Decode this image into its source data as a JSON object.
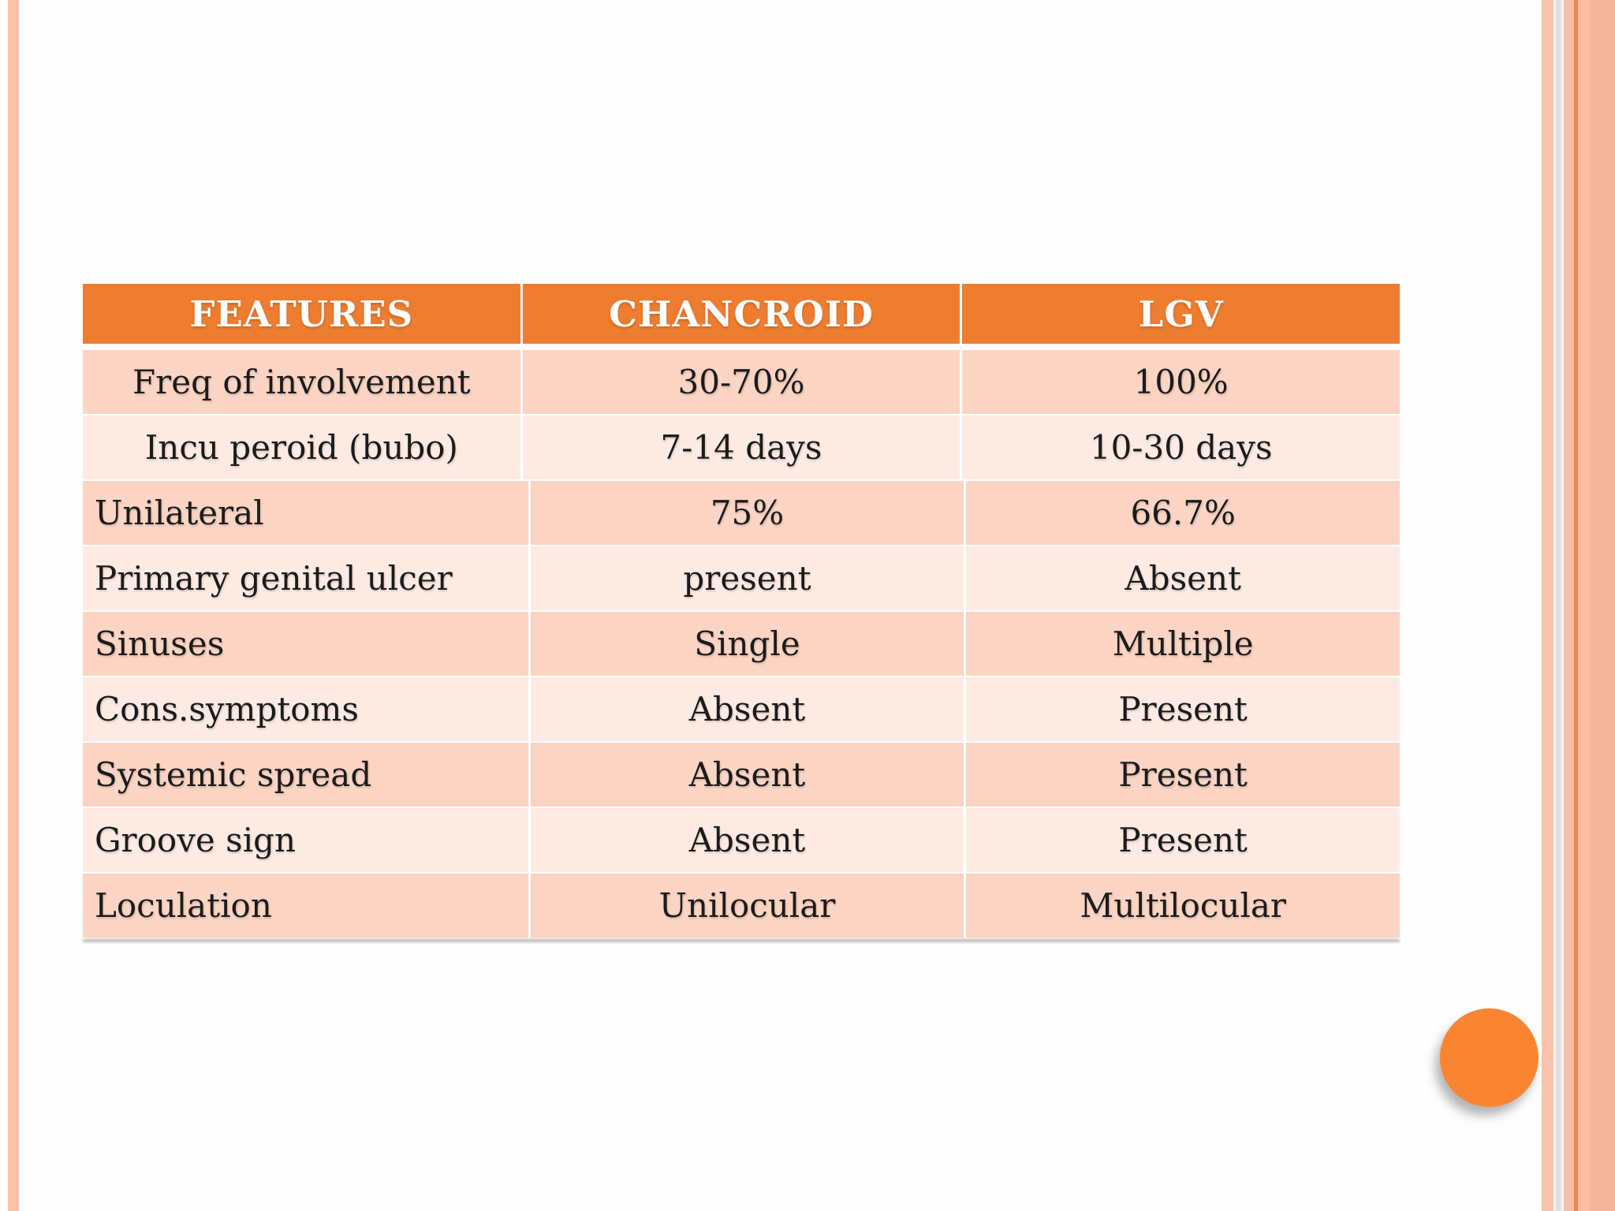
{
  "slide": {
    "background": "#fefefe"
  },
  "decor": {
    "left_stripe_color": "#fbc3ab",
    "right_stripe_color": "#fbc3ab",
    "right_band_color": "#f8bfa6",
    "right_accent_color": "#f5854a",
    "right_outer_color": "#f4b79e",
    "circle_color": "#f98532"
  },
  "table": {
    "header_bg": "#ee7d30",
    "header_text_color": "#ffffff",
    "band_dark": "#fbd4c3",
    "band_light": "#fdebe3",
    "columns": [
      "FEATURES",
      "CHANCROID",
      "LGV"
    ],
    "rows": [
      {
        "feature": "Freq of involvement",
        "chancroid": "30-70%",
        "lgv": "100%",
        "feature_align": "center"
      },
      {
        "feature": "Incu peroid (bubo)",
        "chancroid": "7-14 days",
        "lgv": "10-30 days",
        "feature_align": "center"
      },
      {
        "feature": "Unilateral",
        "chancroid": "75%",
        "lgv": "66.7%",
        "feature_align": "left"
      },
      {
        "feature": "Primary genital ulcer",
        "chancroid": "present",
        "lgv": "Absent",
        "feature_align": "left"
      },
      {
        "feature": "Sinuses",
        "chancroid": "Single",
        "lgv": "Multiple",
        "feature_align": "left"
      },
      {
        "feature": "Cons.symptoms",
        "chancroid": "Absent",
        "lgv": "Present",
        "feature_align": "left"
      },
      {
        "feature": "Systemic spread",
        "chancroid": "Absent",
        "lgv": "Present",
        "feature_align": "left"
      },
      {
        "feature": "Groove sign",
        "chancroid": "Absent",
        "lgv": "Present",
        "feature_align": "left"
      },
      {
        "feature": "Loculation",
        "chancroid": "Unilocular",
        "lgv": "Multilocular",
        "feature_align": "left"
      }
    ]
  }
}
